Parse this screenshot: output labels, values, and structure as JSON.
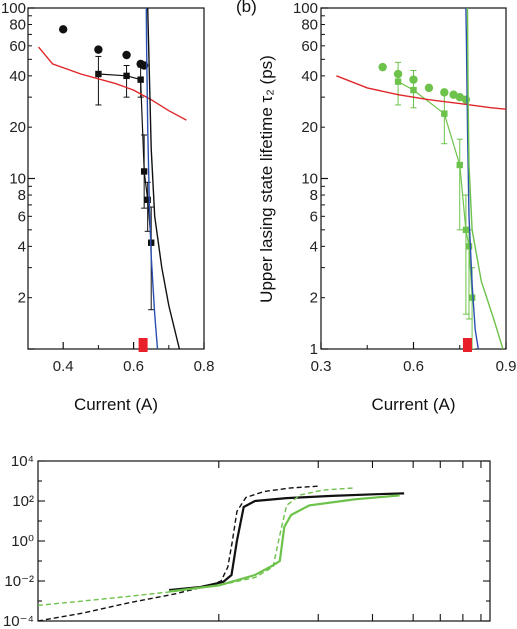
{
  "figure": {
    "panel_b_label": "(b)",
    "colors": {
      "black": "#111111",
      "red": "#e0262a",
      "blue": "#2a4fb0",
      "green": "#6cc24a",
      "marker": "#e8202a"
    }
  },
  "chart_data": [
    {
      "id": "a",
      "type": "scatter",
      "xlabel": "Current (A)",
      "xlim": [
        0.3,
        0.8
      ],
      "xticks": [
        0.4,
        0.6,
        0.8
      ],
      "xtick_labels": [
        "0.4",
        "0.6",
        "0.8"
      ],
      "ylim": [
        1,
        100
      ],
      "yscale": "log",
      "yticks": [
        2,
        4,
        6,
        8,
        10,
        20,
        40,
        60,
        80,
        100
      ],
      "ytick_labels": [
        "2",
        "4",
        "6",
        "8",
        "10",
        "20",
        "40",
        "60",
        "80",
        "100"
      ],
      "threshold_current": 0.627,
      "series": [
        {
          "style": "circles",
          "color": "#111111",
          "x": [
            0.4,
            0.5,
            0.58,
            0.62,
            0.63
          ],
          "y": [
            75,
            57,
            53,
            47,
            46
          ]
        },
        {
          "style": "squares-line-errorbars",
          "color": "#111111",
          "x": [
            0.5,
            0.58,
            0.62,
            0.63,
            0.64,
            0.65
          ],
          "y": [
            41,
            40,
            38,
            11,
            7.5,
            4.2
          ],
          "err_low": [
            27,
            30,
            30,
            6.7,
            4.9,
            1.7
          ],
          "err_high": [
            52,
            46,
            45,
            18,
            9.5,
            6.8
          ]
        },
        {
          "style": "line",
          "color": "#e0262a",
          "x": [
            0.33,
            0.37,
            0.45,
            0.55,
            0.6,
            0.65,
            0.7,
            0.75
          ],
          "y": [
            59,
            47,
            41,
            36,
            33,
            29,
            25,
            22
          ]
        },
        {
          "style": "line",
          "color": "#2a4fb0",
          "x": [
            0.636,
            0.637,
            0.64,
            0.645,
            0.65,
            0.66,
            0.668
          ],
          "y": [
            100,
            60,
            20,
            7,
            3.5,
            1.6,
            1.0
          ]
        },
        {
          "style": "line",
          "color": "#111111",
          "x": [
            0.64,
            0.645,
            0.65,
            0.66,
            0.68,
            0.7,
            0.73
          ],
          "y": [
            100,
            40,
            15,
            6,
            3,
            1.8,
            1.0
          ]
        }
      ]
    },
    {
      "id": "b",
      "type": "scatter",
      "xlabel": "Current (A)",
      "ylabel": "Upper lasing state lifetime  τ₂ (ps)",
      "xlim": [
        0.3,
        0.9
      ],
      "xticks": [
        0.3,
        0.6,
        0.9
      ],
      "xtick_labels": [
        "0.3",
        "0.6",
        "0.9"
      ],
      "ylim": [
        1,
        100
      ],
      "yscale": "log",
      "yticks": [
        1,
        2,
        4,
        6,
        8,
        10,
        20,
        40,
        60,
        80,
        100
      ],
      "ytick_labels": [
        "1",
        "2",
        "4",
        "6",
        "8",
        "10",
        "20",
        "40",
        "60",
        "80",
        "100"
      ],
      "threshold_current": 0.775,
      "series": [
        {
          "style": "circles",
          "color": "#6cc24a",
          "x": [
            0.5,
            0.55,
            0.6,
            0.65,
            0.7,
            0.73,
            0.75,
            0.77
          ],
          "y": [
            45,
            41,
            38,
            34,
            32,
            31,
            30,
            29
          ]
        },
        {
          "style": "squares-line-errorbars",
          "color": "#6cc24a",
          "x": [
            0.55,
            0.6,
            0.7,
            0.75,
            0.77,
            0.78,
            0.79
          ],
          "y": [
            37,
            33,
            24,
            12,
            5,
            4,
            2
          ],
          "err_low": [
            27,
            26,
            16,
            5,
            1.6,
            1.5,
            1.0
          ],
          "err_high": [
            48,
            43,
            32,
            17,
            8,
            5,
            3
          ]
        },
        {
          "style": "line",
          "color": "#e0262a",
          "x": [
            0.35,
            0.45,
            0.55,
            0.65,
            0.75,
            0.85,
            0.9
          ],
          "y": [
            40,
            34,
            31,
            29,
            27.5,
            26,
            25.5
          ]
        },
        {
          "style": "line",
          "color": "#2a4fb0",
          "x": [
            0.77,
            0.772,
            0.775,
            0.78,
            0.79,
            0.8,
            0.81
          ],
          "y": [
            100,
            60,
            20,
            6,
            2.4,
            1.3,
            1.0
          ]
        },
        {
          "style": "line",
          "color": "#6cc24a",
          "x": [
            0.775,
            0.777,
            0.78,
            0.79,
            0.82,
            0.86,
            0.89
          ],
          "y": [
            100,
            30,
            12,
            5,
            2.5,
            1.5,
            1.0
          ]
        }
      ]
    },
    {
      "id": "c",
      "type": "line",
      "ylim": [
        0.0001,
        10000
      ],
      "yscale": "log",
      "yticks": [
        0.0001,
        0.01,
        1,
        100,
        10000
      ],
      "ytick_labels": [
        "10⁻⁴",
        "10⁻²",
        "10⁰",
        "10²",
        "10⁴"
      ],
      "xlim": [
        0,
        1
      ],
      "series": [
        {
          "style": "solid",
          "color": "#111111",
          "x": [
            0.29,
            0.36,
            0.41,
            0.428,
            0.44,
            0.455,
            0.48,
            0.55,
            0.65,
            0.75,
            0.81
          ],
          "y": [
            0.0035,
            0.005,
            0.009,
            0.02,
            1,
            50,
            100,
            140,
            180,
            220,
            240
          ]
        },
        {
          "style": "dashed",
          "color": "#111111",
          "x": [
            0.0,
            0.1,
            0.2,
            0.3,
            0.38,
            0.405,
            0.42,
            0.43,
            0.44,
            0.46,
            0.5,
            0.56,
            0.62
          ],
          "y": [
            0.0001,
            0.00025,
            0.0008,
            0.0022,
            0.006,
            0.01,
            0.05,
            1,
            30,
            150,
            300,
            450,
            550
          ]
        },
        {
          "style": "solid",
          "color": "#6cc24a",
          "x": [
            0.29,
            0.4,
            0.48,
            0.52,
            0.535,
            0.545,
            0.56,
            0.6,
            0.7,
            0.8
          ],
          "y": [
            0.003,
            0.006,
            0.02,
            0.06,
            0.1,
            5,
            20,
            60,
            120,
            190
          ]
        },
        {
          "style": "dashed",
          "color": "#6cc24a",
          "x": [
            0.0,
            0.1,
            0.2,
            0.3,
            0.4,
            0.48,
            0.52,
            0.535,
            0.55,
            0.58,
            0.63,
            0.7
          ],
          "y": [
            0.0006,
            0.001,
            0.0017,
            0.003,
            0.006,
            0.015,
            0.05,
            2,
            60,
            200,
            350,
            450
          ]
        }
      ]
    }
  ]
}
